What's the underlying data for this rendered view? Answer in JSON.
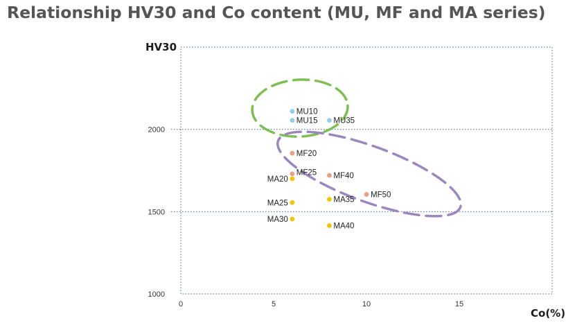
{
  "chart_data": {
    "type": "scatter",
    "title": "Relationship HV30 and Co content (MU, MF and MA series)",
    "xlabel": "Co(%)",
    "ylabel": "HV30",
    "xlim": [
      0,
      20
    ],
    "ylim": [
      1000,
      2500
    ],
    "x_ticks": [
      0,
      5,
      10,
      15
    ],
    "y_ticks": [
      1000,
      1500,
      2000
    ],
    "grid": "dotted",
    "series": [
      {
        "color": "#92cfe6",
        "points": [
          {
            "label": "MU10",
            "x": 6,
            "y": 2110
          },
          {
            "label": "MU15",
            "x": 6,
            "y": 2055
          },
          {
            "label": "MU35",
            "x": 8,
            "y": 2055
          }
        ]
      },
      {
        "color": "#eb9f86",
        "points": [
          {
            "label": "MF20",
            "x": 6,
            "y": 1855
          },
          {
            "label": "MF25",
            "x": 6,
            "y": 1730
          },
          {
            "label": "MF40",
            "x": 8,
            "y": 1720
          },
          {
            "label": "MF50",
            "x": 10,
            "y": 1605
          }
        ]
      },
      {
        "color": "#f2c500",
        "points": [
          {
            "label": "MA20",
            "x": 6,
            "y": 1700
          },
          {
            "label": "MA25",
            "x": 6,
            "y": 1555
          },
          {
            "label": "MA35",
            "x": 8,
            "y": 1575
          },
          {
            "label": "MA30",
            "x": 6,
            "y": 1455
          },
          {
            "label": "MA40",
            "x": 8,
            "y": 1415
          }
        ]
      }
    ],
    "groupings": [
      {
        "shape": "dashed-ellipse",
        "color": "#7ebf52"
      },
      {
        "shape": "dashed-ellipse",
        "color": "#9a87c0"
      }
    ]
  }
}
